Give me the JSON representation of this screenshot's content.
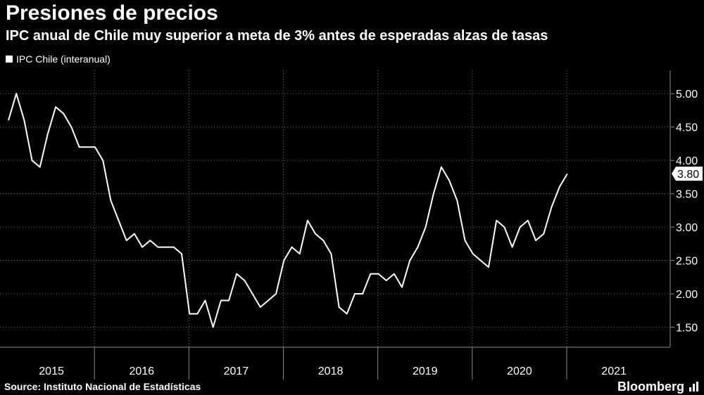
{
  "chart_data": {
    "type": "line",
    "title": "Presiones de precios",
    "subtitle": "IPC anual de Chile muy superior a meta de 3% antes de esperadas alzas de tasas",
    "legend": "top-left",
    "series": [
      {
        "name": "IPC Chile (interanual)",
        "start": "2015-01",
        "values": [
          4.6,
          5.0,
          4.6,
          4.0,
          3.9,
          4.4,
          4.8,
          4.7,
          4.5,
          4.2,
          4.2,
          4.2,
          4.0,
          3.4,
          3.1,
          2.8,
          2.9,
          2.7,
          2.8,
          2.7,
          2.7,
          2.7,
          2.6,
          1.7,
          1.7,
          1.9,
          1.5,
          1.9,
          1.9,
          2.3,
          2.2,
          2.0,
          1.8,
          1.9,
          2.0,
          2.5,
          2.7,
          2.6,
          3.1,
          2.9,
          2.8,
          2.6,
          1.8,
          1.7,
          2.0,
          2.0,
          2.3,
          2.3,
          2.2,
          2.3,
          2.1,
          2.5,
          2.7,
          3.0,
          3.5,
          3.9,
          3.7,
          3.4,
          2.8,
          2.6,
          2.5,
          2.4,
          3.1,
          3.0,
          2.7,
          3.0,
          3.1,
          2.8,
          2.9,
          3.3,
          3.6,
          3.8
        ]
      }
    ],
    "last_value_label": "3.80",
    "y_ticks": [
      "5.00",
      "4.50",
      "4.00",
      "3.50",
      "3.00",
      "2.50",
      "2.00",
      "1.50"
    ],
    "y_tick_values": [
      5.0,
      4.5,
      4.0,
      3.5,
      3.0,
      2.5,
      2.0,
      1.5
    ],
    "ylim": [
      1.2,
      5.35
    ],
    "x_labels": [
      "2015",
      "2016",
      "2017",
      "2018",
      "2019",
      "2020",
      "2021"
    ],
    "x_year_starts": [
      "2015-01",
      "2016-01",
      "2017-01",
      "2018-01",
      "2019-01",
      "2020-01",
      "2021-01"
    ],
    "x_range": [
      "2015-01",
      "2021-12"
    ],
    "grid": true
  },
  "footer": {
    "source": "Source: Instituto Nacional de Estadísticas",
    "brand": "Bloomberg"
  },
  "colors": {
    "background": "#000000",
    "line": "#ffffff",
    "grid": "#666666",
    "axis": "#8a8a8a",
    "text": "#ffffff",
    "tick_text": "#cccccc"
  },
  "icons": {
    "brand_icon": "bar-chart-icon"
  }
}
